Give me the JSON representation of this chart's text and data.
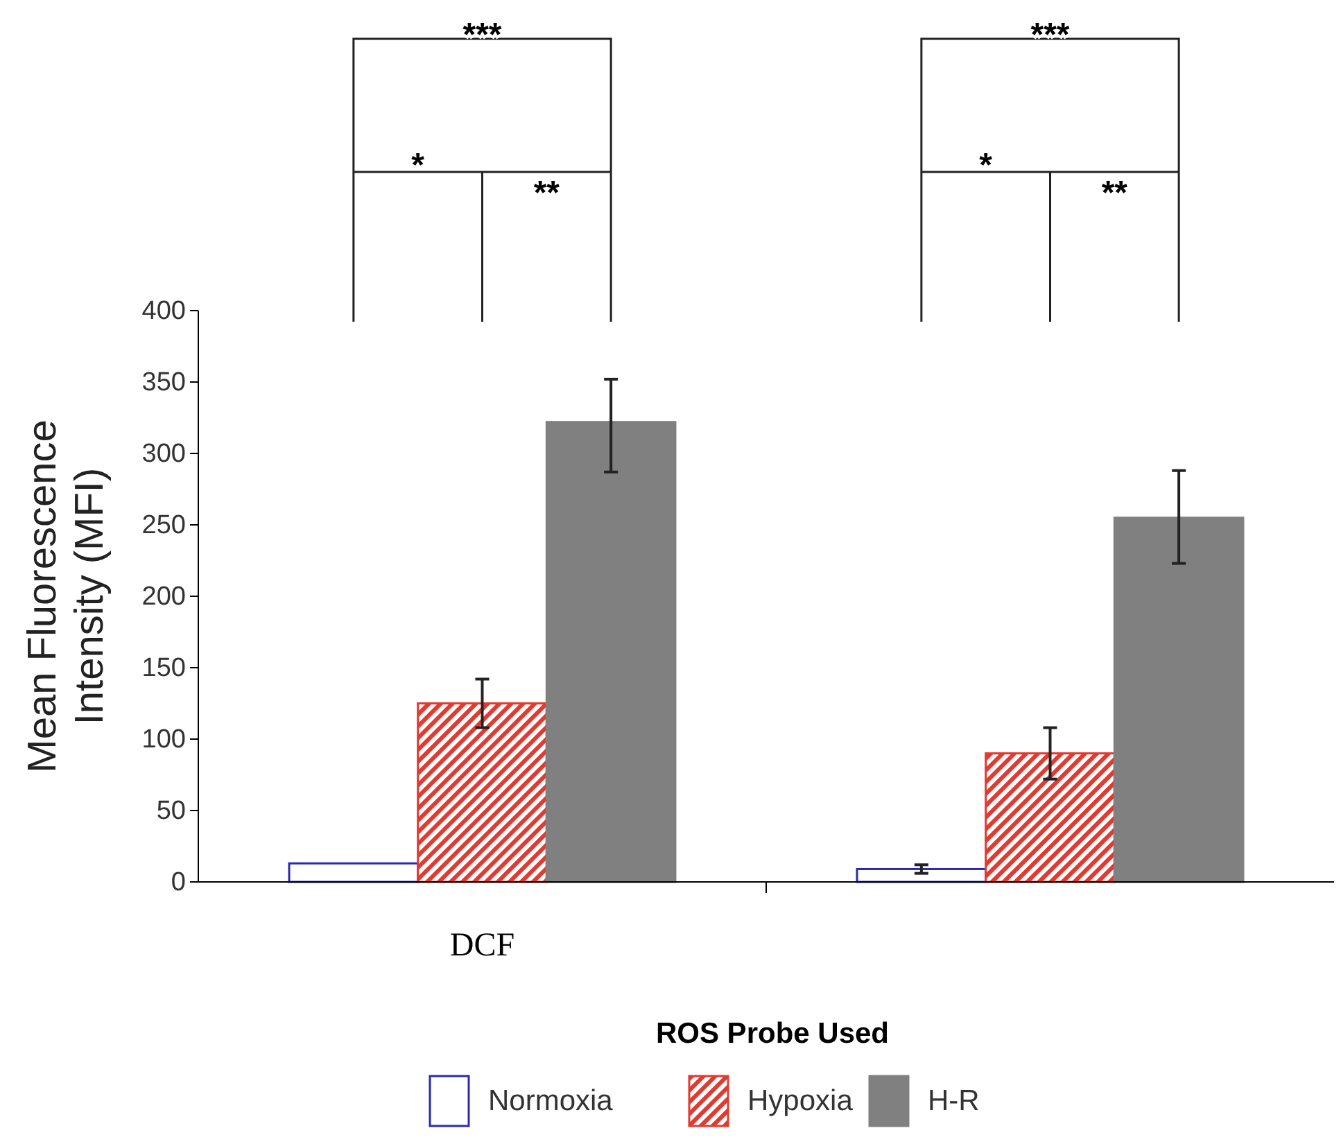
{
  "chart_data": {
    "type": "bar",
    "ylabel": "Mean Fluorescence Intensity (MFI)",
    "legend_title": "ROS Probe Used",
    "legend": "bottom",
    "categories": [
      "DCF",
      null
    ],
    "series": [
      {
        "name": "Normoxia",
        "color": "#2a2ab0",
        "values": [
          13,
          9
        ],
        "errors": [
          null,
          [
            6,
            12
          ]
        ]
      },
      {
        "name": "Hypoxia",
        "color": "#e23a30",
        "values": [
          125,
          90
        ],
        "errors": [
          [
            108,
            142
          ],
          [
            72,
            108
          ]
        ]
      },
      {
        "name": "H-R",
        "color": "#808080",
        "values": [
          322,
          255
        ],
        "errors": [
          [
            287,
            352
          ],
          [
            223,
            288
          ]
        ]
      }
    ],
    "ylim": [
      0,
      400
    ],
    "yticks": [
      0,
      50,
      100,
      150,
      200,
      250,
      300,
      350,
      400
    ],
    "annotations": [
      "***",
      "*",
      "**",
      "***",
      "*",
      "**"
    ]
  }
}
